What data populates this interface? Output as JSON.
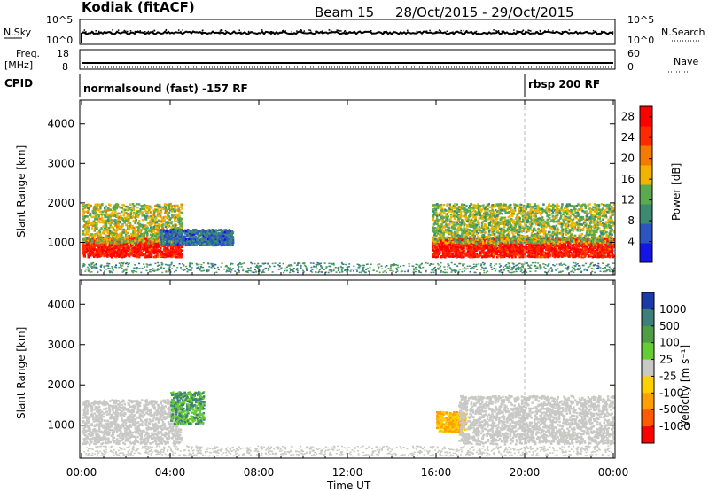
{
  "header": {
    "station": "Kodiak (fitACF)",
    "beam": "Beam 15",
    "date_range": "28/Oct/2015 - 29/Oct/2015"
  },
  "top_panels": {
    "nsky_label": "N.Sky",
    "nsky_ticks": [
      "10^5",
      "10^0"
    ],
    "nsearch_label": "N.Search",
    "freq_label_1": "Freq.",
    "freq_label_2": "[MHz]",
    "freq_ticks": [
      "18",
      "8"
    ],
    "nave_label": "Nave",
    "nave_ticks": [
      "60",
      "0"
    ],
    "cpid_label": "CPID",
    "modes": [
      {
        "name": "normalsound (fast) -157 RF",
        "start_hour": 0
      },
      {
        "name": "rbsp 200 RF",
        "start_hour": 20
      }
    ]
  },
  "colors": {
    "power": [
      "#1414e6",
      "#2d55c0",
      "#3d8a70",
      "#5caa50",
      "#f0b400",
      "#f57a00",
      "#ff2a00",
      "#ff0000"
    ],
    "velocity_scatter": "#c8c8c4"
  },
  "chart_data": [
    {
      "type": "heatmap",
      "panel": "power",
      "xlabel": "Time UT",
      "ylabel": "Slant Range [km]",
      "x_ticks": [
        "00:00",
        "04:00",
        "08:00",
        "12:00",
        "16:00",
        "20:00",
        "00:00"
      ],
      "xlim_hours": [
        0,
        24
      ],
      "ylim": [
        180,
        4600
      ],
      "y_ticks": [
        1000,
        2000,
        3000,
        4000
      ],
      "colorbar": {
        "label": "Power [dB]",
        "ticks": [
          4,
          8,
          12,
          16,
          20,
          24,
          28
        ],
        "range": [
          0,
          30
        ]
      },
      "echo_regions": [
        {
          "t0": 0.0,
          "t1": 4.5,
          "range_center_km": 900,
          "band_km": 250,
          "power_db": 28
        },
        {
          "t0": 0.0,
          "t1": 4.5,
          "range_center_km": 1500,
          "band_km": 500,
          "power_db": 15
        },
        {
          "t0": 3.5,
          "t1": 6.8,
          "range_center_km": 1150,
          "band_km": 200,
          "power_db": 6
        },
        {
          "t0": 15.8,
          "t1": 24.0,
          "range_center_km": 900,
          "band_km": 250,
          "power_db": 28
        },
        {
          "t0": 15.8,
          "t1": 24.0,
          "range_center_km": 1500,
          "band_km": 500,
          "power_db": 14
        }
      ]
    },
    {
      "type": "heatmap",
      "panel": "velocity",
      "xlabel": "Time UT",
      "ylabel": "Slant Range [km]",
      "x_ticks": [
        "00:00",
        "04:00",
        "08:00",
        "12:00",
        "16:00",
        "20:00",
        "00:00"
      ],
      "xlim_hours": [
        0,
        24
      ],
      "ylim": [
        180,
        4600
      ],
      "y_ticks": [
        1000,
        2000,
        3000,
        4000
      ],
      "colorbar": {
        "label": "Velocity [m s⁻¹]",
        "ticks": [
          "1000",
          "500",
          "100",
          "25",
          "-25",
          "-100",
          "-500",
          "-1000"
        ],
        "colors": [
          "#1a3aa8",
          "#3d7f7a",
          "#4f9e46",
          "#66cc33",
          "#c8c8c4",
          "#ffd000",
          "#ffa000",
          "#ff5a00",
          "#ff0000"
        ]
      },
      "echo_regions": [
        {
          "t0": 0.0,
          "t1": 4.5,
          "range_center_km": 1100,
          "band_km": 550,
          "velocity": 0
        },
        {
          "t0": 4.0,
          "t1": 5.5,
          "range_center_km": 1450,
          "band_km": 400,
          "velocity": 100
        },
        {
          "t0": 16.0,
          "t1": 17.3,
          "range_center_km": 1100,
          "band_km": 250,
          "velocity": -100
        },
        {
          "t0": 17.0,
          "t1": 24.0,
          "range_center_km": 1150,
          "band_km": 600,
          "velocity": 0
        }
      ]
    }
  ]
}
